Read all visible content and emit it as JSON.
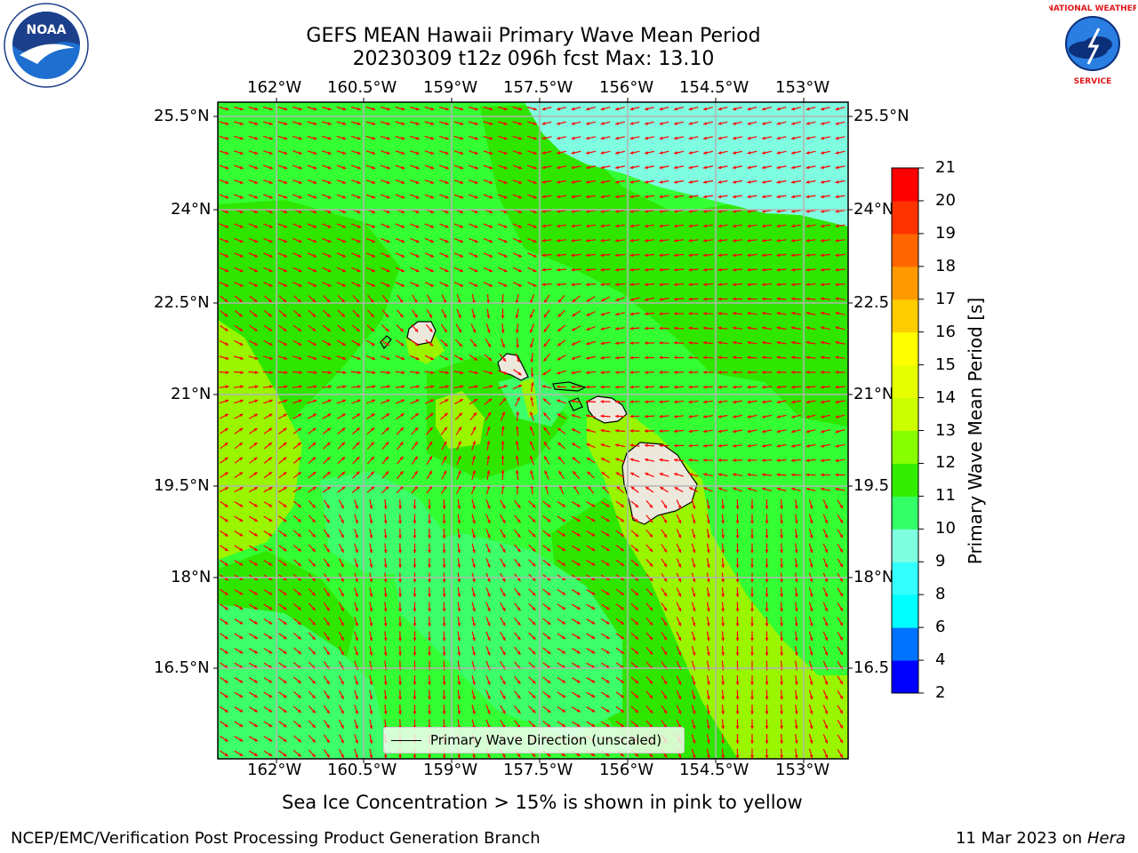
{
  "header": {
    "title_line1": "GEFS MEAN Hawaii Primary Wave Mean Period",
    "title_line2": "20230309 t12z 096h fcst   Max: 13.10"
  },
  "map": {
    "lon_labels": [
      "162°W",
      "160.5°W",
      "159°W",
      "157.5°W",
      "156°W",
      "154.5°W",
      "153°W"
    ],
    "lat_labels": [
      "25.5°N",
      "24°N",
      "22.5°N",
      "21°N",
      "19.5°N",
      "18°N",
      "16.5°N"
    ],
    "lat_labels_right": [
      "25.5°N",
      "24°N",
      "22.5",
      "21°N",
      "19.5",
      "18°N",
      "16.5"
    ],
    "legend_label": "Primary Wave Direction (unscaled)",
    "colors": {
      "field_main": "#33ff33",
      "field_pale_green": "#3cff6a",
      "field_dark_green": "#2ee600",
      "field_yellow_green": "#99f500",
      "field_cyan": "#7ffde0",
      "arrow": "#ff0000",
      "land": "#ede8dc",
      "grid": "#b3b3b3"
    }
  },
  "colorbar": {
    "label": "Primary Wave Mean Period [s]",
    "ticks": [
      "2",
      "4",
      "6",
      "8",
      "9",
      "10",
      "11",
      "12",
      "13",
      "14",
      "15",
      "16",
      "17",
      "18",
      "19",
      "20",
      "21"
    ],
    "colors": [
      "#0000ff",
      "#0073ff",
      "#00ffff",
      "#33ffff",
      "#7fffe0",
      "#33ff66",
      "#33ee00",
      "#88ff00",
      "#ccff00",
      "#e6ff00",
      "#ffff00",
      "#ffcc00",
      "#ff9900",
      "#ff6600",
      "#ff3300",
      "#ff0000"
    ]
  },
  "footer": {
    "note": "Sea Ice Concentration > 15% is shown in pink to yellow",
    "left": "NCEP/EMC/Verification Post Processing Product Generation Branch",
    "right_date": "11 Mar 2023 on",
    "right_machine": "Hera"
  },
  "logos": {
    "noaa_text": "NOAA",
    "nws_text": "NATIONAL WEATHER SERVICE"
  }
}
